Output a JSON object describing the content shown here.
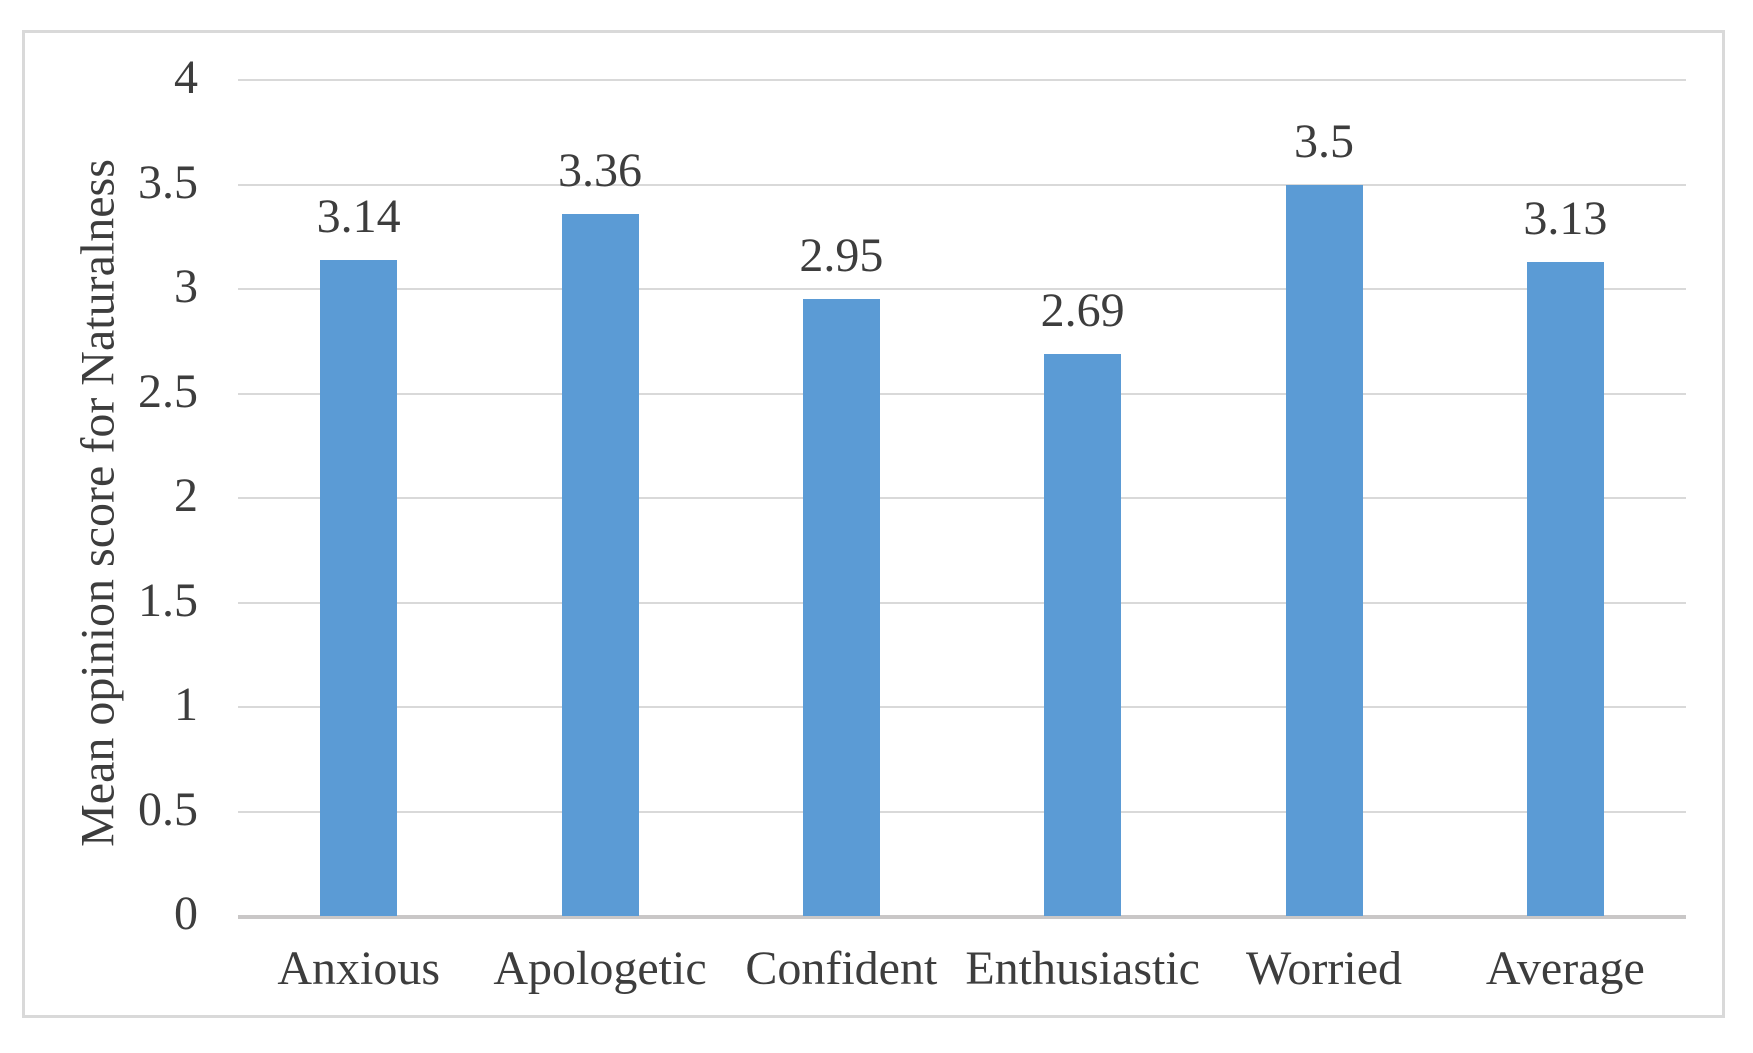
{
  "chart_data": {
    "type": "bar",
    "categories": [
      "Anxious",
      "Apologetic",
      "Confident",
      "Enthusiastic",
      "Worried",
      "Average"
    ],
    "values": [
      3.14,
      3.36,
      2.95,
      2.69,
      3.5,
      3.13
    ],
    "data_labels": [
      "3.14",
      "3.36",
      "2.95",
      "2.69",
      "3.5",
      "3.13"
    ],
    "title": "",
    "xlabel": "",
    "ylabel": "Mean opinion score for Naturalness",
    "ylim": [
      0,
      4
    ],
    "yticks": [
      "0",
      "0.5",
      "1",
      "1.5",
      "2",
      "2.5",
      "3",
      "3.5",
      "4"
    ],
    "grid": "horizontal-only",
    "legend": "none",
    "colors": {
      "bar": "#5b9bd5",
      "gridline": "#d9d9d9",
      "axis_line": "#c9c7c7",
      "text": "#3d3d3d",
      "frame_border": "#d9d9d9",
      "background": "#ffffff"
    }
  }
}
